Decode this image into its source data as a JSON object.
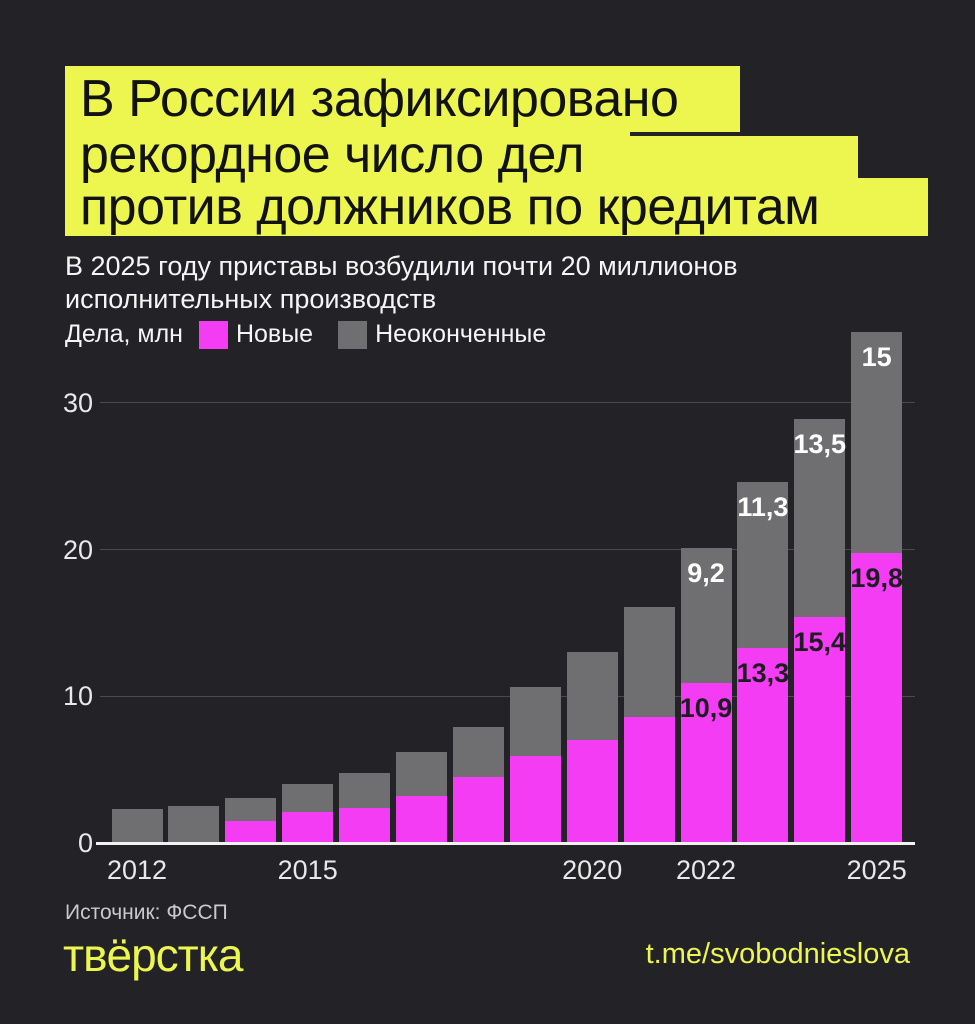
{
  "title": {
    "lines": [
      "В России зафиксировано",
      "рекордное число дел",
      "против должников по кредитам"
    ]
  },
  "subtitle": {
    "lines": [
      "В 2025 году приставы возбудили почти 20 миллионов",
      "исполнительных производств"
    ]
  },
  "legend": {
    "axis_label": "Дела, млн",
    "series": [
      {
        "label": "Новые",
        "color": "#f43cf4"
      },
      {
        "label": "Неоконченные",
        "color": "#6f6e70"
      }
    ]
  },
  "chart_data": {
    "type": "bar",
    "stacked": true,
    "title": "В России зафиксировано рекордное число дел против должников по кредитам",
    "ylabel": "Дела, млн",
    "xlabel": "",
    "ylim": [
      0,
      35
    ],
    "grid": true,
    "legend_position": "top",
    "categories": [
      2012,
      2013,
      2014,
      2015,
      2016,
      2017,
      2018,
      2019,
      2020,
      2021,
      2022,
      2023,
      2024,
      2025
    ],
    "series": [
      {
        "name": "Новые",
        "color": "#f43cf4",
        "values": [
          0,
          0,
          1.5,
          2.1,
          2.4,
          3.2,
          4.5,
          5.9,
          7.0,
          8.6,
          10.9,
          13.3,
          15.4,
          19.8
        ],
        "labels": [
          null,
          null,
          null,
          null,
          null,
          null,
          null,
          null,
          null,
          null,
          "10,9",
          "13,3",
          "15,4",
          "19,8"
        ]
      },
      {
        "name": "Неоконченные",
        "color": "#6f6e70",
        "values": [
          2.3,
          2.5,
          1.6,
          1.9,
          2.4,
          3.0,
          3.4,
          4.7,
          6.0,
          7.5,
          9.2,
          11.3,
          13.5,
          15
        ],
        "labels": [
          null,
          null,
          null,
          null,
          null,
          null,
          null,
          null,
          null,
          null,
          "9,2",
          "11,3",
          "13,5",
          "15"
        ]
      }
    ],
    "y_ticks": [
      0,
      10,
      20,
      30
    ],
    "x_ticks": [
      {
        "index": 0,
        "label": "2012"
      },
      {
        "index": 3,
        "label": "2015"
      },
      {
        "index": 8,
        "label": "2020"
      },
      {
        "index": 10,
        "label": "2022"
      },
      {
        "index": 13,
        "label": "2025"
      }
    ]
  },
  "footer": {
    "source": "Источник: ФССП",
    "logo": "твёрстка",
    "handle": "t.me/svobodnieslova"
  },
  "colors": {
    "background": "#232227",
    "accent_yellow": "#ecf64f",
    "magenta": "#f43cf4",
    "gray": "#6f6e70",
    "grid": "#4b4b4b",
    "axis_text": "#e8e8e8",
    "text": "#f5f5f5",
    "label_dark": "#1d1c20",
    "source_text": "#c9c9c9"
  }
}
